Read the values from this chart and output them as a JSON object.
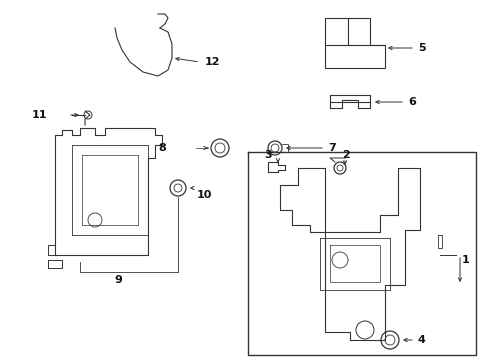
{
  "bg_color": "#ffffff",
  "line_color": "#333333",
  "text_color": "#111111",
  "figsize": [
    4.89,
    3.6
  ],
  "dpi": 100,
  "xlim": [
    0,
    489
  ],
  "ylim": [
    0,
    360
  ]
}
